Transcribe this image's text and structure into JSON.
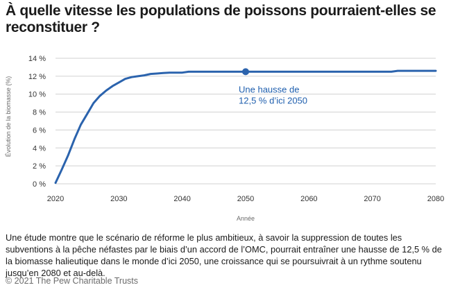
{
  "title": "À quelle vitesse les populations de poissons pourraient-elles se reconstituer ?",
  "caption": "Une étude montre que le scénario de réforme le plus ambitieux, à savoir la suppression de toutes les subventions à la pêche néfastes par le biais d’un accord de l’OMC, pourrait entraîner une hausse de 12,5 % de la biomasse halieutique dans le monde d’ici 2050, une croissance qui se poursuivrait à un rythme soutenu jusqu’en 2080 et au-delà.",
  "credit": "© 2021 The Pew Charitable Trusts",
  "colors": {
    "line": "#2b63ad",
    "grid": "#d0d0d0",
    "annotation": "#1f5fae"
  },
  "chart_data": {
    "type": "line",
    "xlabel": "Année",
    "ylabel": "Évolution de la biomasse (%)",
    "xlim": [
      2020,
      2080
    ],
    "ylim": [
      0,
      14
    ],
    "x_ticks": [
      2020,
      2030,
      2040,
      2050,
      2060,
      2070,
      2080
    ],
    "y_ticks": [
      0,
      2,
      4,
      6,
      8,
      10,
      12,
      14
    ],
    "y_tick_labels": [
      "0 %",
      "2 %",
      "4 %",
      "6 %",
      "8 %",
      "10 %",
      "12 %",
      "14 %"
    ],
    "grid": "horizontal",
    "series": [
      {
        "x": [
          2020,
          2021,
          2022,
          2023,
          2024,
          2025,
          2026,
          2027,
          2028,
          2029,
          2030,
          2031,
          2032,
          2033,
          2034,
          2035,
          2036,
          2037,
          2038,
          2039,
          2040,
          2041,
          2042,
          2045,
          2050,
          2055,
          2060,
          2065,
          2070,
          2073,
          2074,
          2075,
          2080
        ],
        "values": [
          0.1,
          1.6,
          3.2,
          5.0,
          6.6,
          7.8,
          9.0,
          9.8,
          10.4,
          10.9,
          11.3,
          11.7,
          11.9,
          12.0,
          12.1,
          12.25,
          12.3,
          12.35,
          12.4,
          12.4,
          12.4,
          12.5,
          12.5,
          12.5,
          12.5,
          12.5,
          12.5,
          12.5,
          12.5,
          12.5,
          12.6,
          12.6,
          12.6
        ]
      }
    ],
    "highlight": {
      "x": 2050,
      "y": 12.5
    },
    "annotation": [
      "Une hausse de",
      "12,5 % d’ici 2050"
    ]
  }
}
